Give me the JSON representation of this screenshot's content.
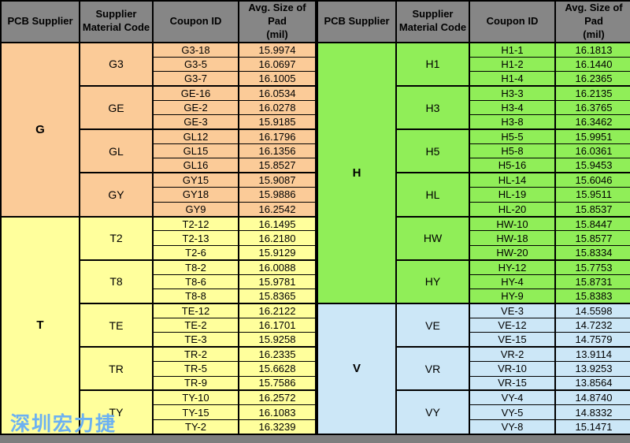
{
  "page": {
    "background_color": "#7e7e7e",
    "border_color": "#000000"
  },
  "watermark": {
    "text": "深圳宏力捷",
    "color": "#6cb1f2"
  },
  "table": {
    "headers": [
      "PCB Supplier",
      "Supplier\nMaterial Code",
      "Coupon ID",
      "Avg. Size of Pad\n(mil)"
    ],
    "header_bg": "#868686",
    "halves": [
      {
        "suppliers": [
          {
            "name": "G",
            "color": "#fbcb98",
            "groups": [
              {
                "code": "G3",
                "rows": [
                  [
                    "G3-18",
                    "15.9974"
                  ],
                  [
                    "G3-5",
                    "16.0697"
                  ],
                  [
                    "G3-7",
                    "16.1005"
                  ]
                ]
              },
              {
                "code": "GE",
                "rows": [
                  [
                    "GE-16",
                    "16.0534"
                  ],
                  [
                    "GE-2",
                    "16.0278"
                  ],
                  [
                    "GE-3",
                    "15.9185"
                  ]
                ]
              },
              {
                "code": "GL",
                "rows": [
                  [
                    "GL12",
                    "16.1796"
                  ],
                  [
                    "GL15",
                    "16.1356"
                  ],
                  [
                    "GL16",
                    "15.8527"
                  ]
                ]
              },
              {
                "code": "GY",
                "rows": [
                  [
                    "GY15",
                    "15.9087"
                  ],
                  [
                    "GY18",
                    "15.9886"
                  ],
                  [
                    "GY9",
                    "16.2542"
                  ]
                ]
              }
            ]
          },
          {
            "name": "T",
            "color": "#ffff9c",
            "groups": [
              {
                "code": "T2",
                "rows": [
                  [
                    "T2-12",
                    "16.1495"
                  ],
                  [
                    "T2-13",
                    "16.2180"
                  ],
                  [
                    "T2-6",
                    "15.9129"
                  ]
                ]
              },
              {
                "code": "T8",
                "rows": [
                  [
                    "T8-2",
                    "16.0088"
                  ],
                  [
                    "T8-6",
                    "15.9781"
                  ],
                  [
                    "T8-8",
                    "15.8365"
                  ]
                ]
              },
              {
                "code": "TE",
                "rows": [
                  [
                    "TE-12",
                    "16.2122"
                  ],
                  [
                    "TE-2",
                    "16.1701"
                  ],
                  [
                    "TE-3",
                    "15.9258"
                  ]
                ]
              },
              {
                "code": "TR",
                "rows": [
                  [
                    "TR-2",
                    "16.2335"
                  ],
                  [
                    "TR-5",
                    "15.6628"
                  ],
                  [
                    "TR-9",
                    "15.7586"
                  ]
                ]
              },
              {
                "code": "TY",
                "rows": [
                  [
                    "TY-10",
                    "16.2572"
                  ],
                  [
                    "TY-15",
                    "16.1083"
                  ],
                  [
                    "TY-2",
                    "16.3239"
                  ]
                ]
              }
            ]
          }
        ]
      },
      {
        "suppliers": [
          {
            "name": "H",
            "color": "#90ee58",
            "groups": [
              {
                "code": "H1",
                "rows": [
                  [
                    "H1-1",
                    "16.1813"
                  ],
                  [
                    "H1-2",
                    "16.1440"
                  ],
                  [
                    "H1-4",
                    "16.2365"
                  ]
                ]
              },
              {
                "code": "H3",
                "rows": [
                  [
                    "H3-3",
                    "16.2135"
                  ],
                  [
                    "H3-4",
                    "16.3765"
                  ],
                  [
                    "H3-8",
                    "16.3462"
                  ]
                ]
              },
              {
                "code": "H5",
                "rows": [
                  [
                    "H5-5",
                    "15.9951"
                  ],
                  [
                    "H5-8",
                    "16.0361"
                  ],
                  [
                    "H5-16",
                    "15.9453"
                  ]
                ]
              },
              {
                "code": "HL",
                "rows": [
                  [
                    "HL-14",
                    "15.6046"
                  ],
                  [
                    "HL-19",
                    "15.9511"
                  ],
                  [
                    "HL-20",
                    "15.8537"
                  ]
                ]
              },
              {
                "code": "HW",
                "rows": [
                  [
                    "HW-10",
                    "15.8447"
                  ],
                  [
                    "HW-18",
                    "15.8577"
                  ],
                  [
                    "HW-20",
                    "15.8334"
                  ]
                ]
              },
              {
                "code": "HY",
                "rows": [
                  [
                    "HY-12",
                    "15.7753"
                  ],
                  [
                    "HY-4",
                    "15.8731"
                  ],
                  [
                    "HY-9",
                    "15.8383"
                  ]
                ]
              }
            ]
          },
          {
            "name": "V",
            "color": "#cce7f7",
            "groups": [
              {
                "code": "VE",
                "rows": [
                  [
                    "VE-3",
                    "14.5598"
                  ],
                  [
                    "VE-12",
                    "14.7232"
                  ],
                  [
                    "VE-15",
                    "14.7579"
                  ]
                ]
              },
              {
                "code": "VR",
                "rows": [
                  [
                    "VR-2",
                    "13.9114"
                  ],
                  [
                    "VR-10",
                    "13.9253"
                  ],
                  [
                    "VR-15",
                    "13.8564"
                  ]
                ]
              },
              {
                "code": "VY",
                "rows": [
                  [
                    "VY-4",
                    "14.8740"
                  ],
                  [
                    "VY-5",
                    "14.8332"
                  ],
                  [
                    "VY-8",
                    "15.1471"
                  ]
                ]
              }
            ]
          }
        ]
      }
    ]
  }
}
